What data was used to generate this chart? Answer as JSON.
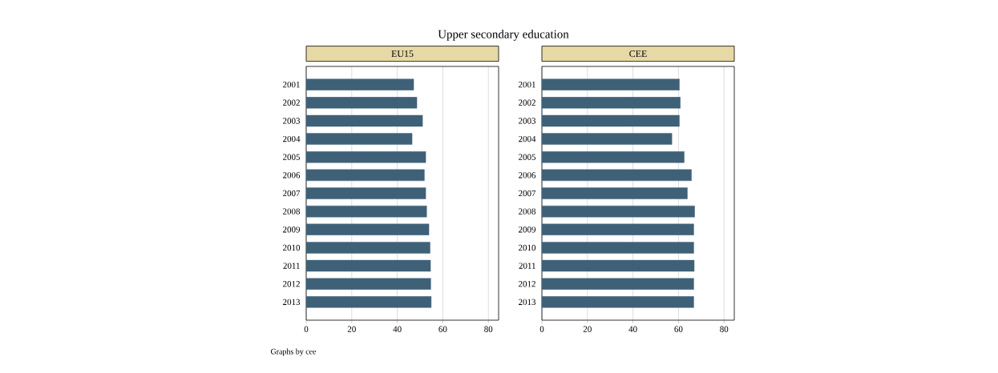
{
  "chart_data": [
    {
      "type": "bar",
      "orientation": "horizontal",
      "title": "EU15",
      "categories": [
        "2001",
        "2002",
        "2003",
        "2004",
        "2005",
        "2006",
        "2007",
        "2008",
        "2009",
        "2010",
        "2011",
        "2012",
        "2013"
      ],
      "values": [
        47.2,
        48.6,
        51.1,
        46.5,
        52.5,
        51.9,
        52.5,
        52.9,
        53.9,
        54.4,
        54.6,
        54.7,
        54.9
      ],
      "color": "#3f6178",
      "xlim": [
        0,
        84.5
      ],
      "xticks": [
        0,
        20,
        40,
        60,
        80
      ],
      "grid": "x",
      "annotations": [
        "Upper secondary education",
        "Graphs by cee"
      ]
    },
    {
      "type": "bar",
      "orientation": "horizontal",
      "title": "CEE",
      "categories": [
        "2001",
        "2002",
        "2003",
        "2004",
        "2005",
        "2006",
        "2007",
        "2008",
        "2009",
        "2010",
        "2011",
        "2012",
        "2013"
      ],
      "values": [
        60.4,
        60.8,
        60.4,
        57.1,
        62.5,
        65.7,
        63.9,
        67.1,
        66.7,
        66.7,
        66.9,
        66.7,
        66.7
      ],
      "color": "#3f6178",
      "xlim": [
        0,
        84.5
      ],
      "xticks": [
        0,
        20,
        40,
        60,
        80
      ],
      "grid": "x"
    }
  ]
}
